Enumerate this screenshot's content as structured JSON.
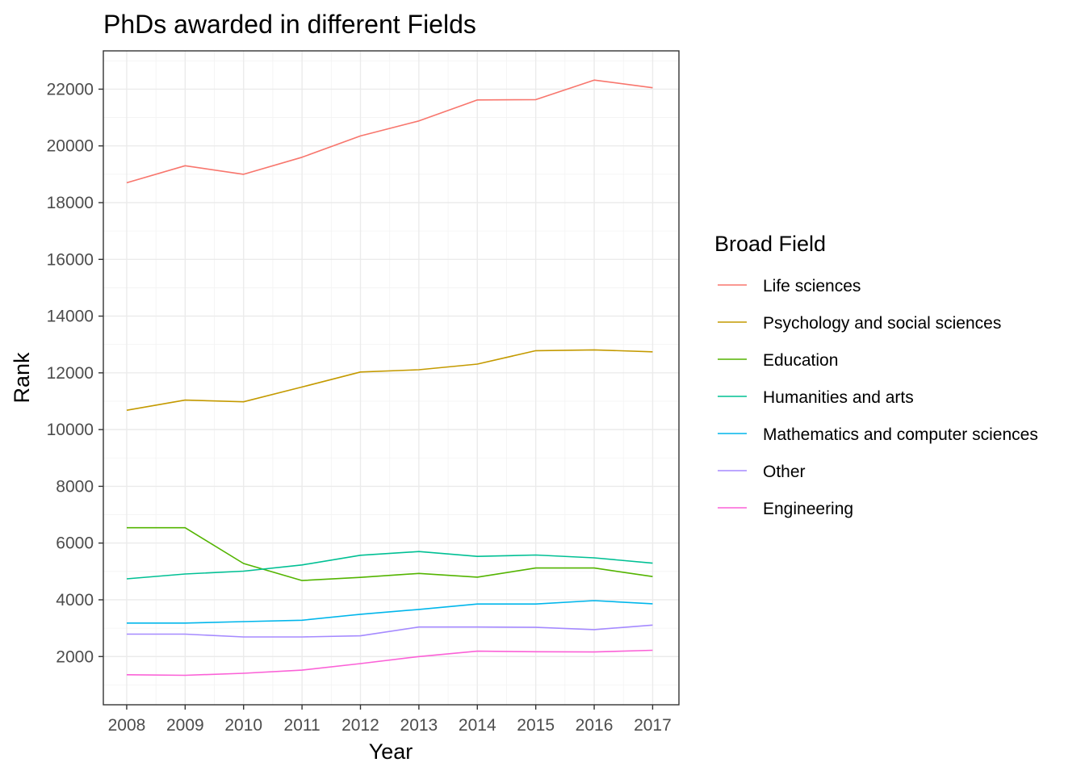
{
  "chart_data": {
    "type": "line",
    "title": "PhDs awarded in different Fields",
    "xlabel": "Year",
    "ylabel": "Rank",
    "x": [
      2008,
      2009,
      2010,
      2011,
      2012,
      2013,
      2014,
      2015,
      2016,
      2017
    ],
    "x_ticks": [
      "2008",
      "2009",
      "2010",
      "2011",
      "2012",
      "2013",
      "2014",
      "2015",
      "2016",
      "2017"
    ],
    "xlim": [
      2007.6,
      2017.45
    ],
    "ylim": [
      300,
      23350
    ],
    "y_ticks": [
      2000,
      4000,
      6000,
      8000,
      10000,
      12000,
      14000,
      16000,
      18000,
      20000,
      22000
    ],
    "y_tick_labels": [
      "2000",
      "4000",
      "6000",
      "8000",
      "10000",
      "12000",
      "14000",
      "16000",
      "18000",
      "20000",
      "22000"
    ],
    "grid": true,
    "legend": {
      "title": "Broad Field",
      "position": "right"
    },
    "series": [
      {
        "name": "Life sciences",
        "color": "#F8766D",
        "values": [
          18700,
          19300,
          19000,
          19600,
          20350,
          20880,
          21620,
          21630,
          22320,
          22050
        ]
      },
      {
        "name": "Psychology and social sciences",
        "color": "#C49A00",
        "values": [
          10680,
          11040,
          10980,
          11500,
          12030,
          12110,
          12310,
          12780,
          12810,
          12740
        ]
      },
      {
        "name": "Education",
        "color": "#53B400",
        "values": [
          6540,
          6540,
          5280,
          4680,
          4790,
          4930,
          4800,
          5120,
          5120,
          4820
        ]
      },
      {
        "name": "Humanities and arts",
        "color": "#00C094",
        "values": [
          4740,
          4910,
          5010,
          5230,
          5570,
          5700,
          5530,
          5580,
          5480,
          5290
        ]
      },
      {
        "name": "Mathematics and computer sciences",
        "color": "#00B6EB",
        "values": [
          3180,
          3180,
          3230,
          3280,
          3490,
          3660,
          3850,
          3850,
          3970,
          3860
        ]
      },
      {
        "name": "Other",
        "color": "#A58AFF",
        "values": [
          2790,
          2790,
          2690,
          2690,
          2730,
          3040,
          3040,
          3030,
          2950,
          3110
        ]
      },
      {
        "name": "Engineering",
        "color": "#FB61D7",
        "values": [
          1360,
          1340,
          1410,
          1520,
          1750,
          2000,
          2190,
          2170,
          2160,
          2220
        ]
      }
    ]
  }
}
